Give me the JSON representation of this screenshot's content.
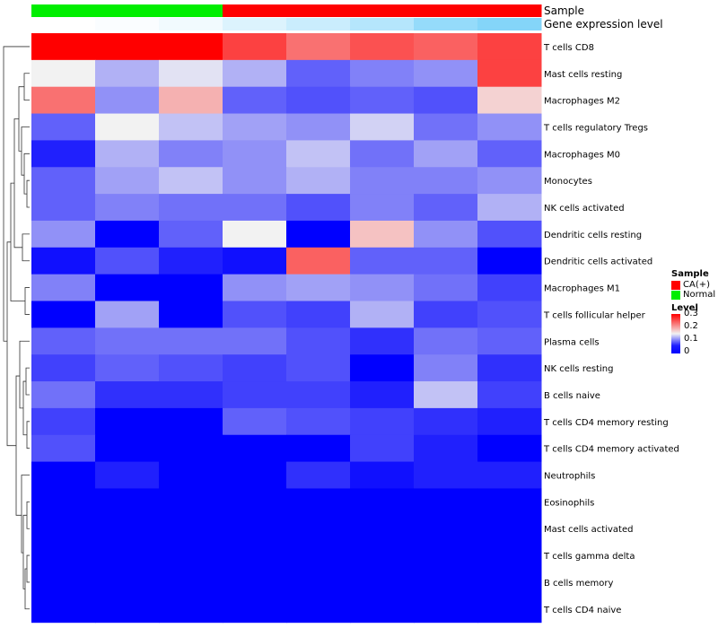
{
  "chart_data": {
    "type": "heatmap",
    "annotation_labels": {
      "sample": "Sample",
      "gene_expression": "Gene expression level"
    },
    "columns": [
      {
        "sample": "Normal",
        "gene_expression": 0.0
      },
      {
        "sample": "Normal",
        "gene_expression": 0.03
      },
      {
        "sample": "Normal",
        "gene_expression": 0.08
      },
      {
        "sample": "CA(+)",
        "gene_expression": 0.2
      },
      {
        "sample": "CA(+)",
        "gene_expression": 0.3
      },
      {
        "sample": "CA(+)",
        "gene_expression": 0.42
      },
      {
        "sample": "CA(+)",
        "gene_expression": 0.6
      },
      {
        "sample": "CA(+)",
        "gene_expression": 0.7
      }
    ],
    "rows": [
      "T cells CD8",
      "Mast cells resting",
      "Macrophages M2",
      "T cells regulatory  Tregs",
      "Macrophages M0",
      "Monocytes",
      "NK cells activated",
      "Dendritic cells resting",
      "Dendritic cells activated",
      "Macrophages M1",
      "T cells follicular helper",
      "Plasma cells",
      "NK cells resting",
      "B cells naive",
      "T cells CD4 memory resting",
      "T cells CD4 memory activated",
      "Neutrophils",
      "Eosinophils",
      "Mast cells activated",
      "T cells gamma delta",
      "B cells memory",
      "T cells CD4 naive"
    ],
    "values": [
      [
        0.3,
        0.3,
        0.3,
        0.26,
        0.23,
        0.25,
        0.24,
        0.26
      ],
      [
        0.15,
        0.11,
        0.14,
        0.11,
        0.06,
        0.08,
        0.09,
        0.26
      ],
      [
        0.23,
        0.09,
        0.19,
        0.06,
        0.05,
        0.06,
        0.05,
        0.17
      ],
      [
        0.06,
        0.15,
        0.12,
        0.1,
        0.09,
        0.13,
        0.07,
        0.09
      ],
      [
        0.02,
        0.11,
        0.08,
        0.09,
        0.12,
        0.07,
        0.1,
        0.06
      ],
      [
        0.06,
        0.1,
        0.12,
        0.09,
        0.11,
        0.08,
        0.08,
        0.09
      ],
      [
        0.06,
        0.08,
        0.07,
        0.07,
        0.05,
        0.08,
        0.06,
        0.11
      ],
      [
        0.09,
        0.0,
        0.06,
        0.15,
        0.0,
        0.18,
        0.09,
        0.05
      ],
      [
        0.01,
        0.05,
        0.02,
        0.01,
        0.24,
        0.06,
        0.06,
        0.0
      ],
      [
        0.08,
        0.0,
        0.0,
        0.09,
        0.1,
        0.09,
        0.07,
        0.04
      ],
      [
        0.0,
        0.1,
        0.0,
        0.05,
        0.04,
        0.11,
        0.04,
        0.05
      ],
      [
        0.06,
        0.07,
        0.07,
        0.07,
        0.05,
        0.03,
        0.07,
        0.06
      ],
      [
        0.04,
        0.06,
        0.05,
        0.04,
        0.05,
        0.0,
        0.08,
        0.03
      ],
      [
        0.07,
        0.03,
        0.03,
        0.04,
        0.04,
        0.02,
        0.12,
        0.04
      ],
      [
        0.04,
        0.0,
        0.0,
        0.06,
        0.05,
        0.04,
        0.03,
        0.02
      ],
      [
        0.05,
        0.0,
        0.0,
        0.0,
        0.0,
        0.04,
        0.02,
        0.0
      ],
      [
        0.0,
        0.02,
        0.0,
        0.0,
        0.03,
        0.01,
        0.02,
        0.02
      ],
      [
        0.0,
        0.0,
        0.0,
        0.0,
        0.0,
        0.0,
        0.0,
        0.0
      ],
      [
        0.0,
        0.0,
        0.0,
        0.0,
        0.0,
        0.0,
        0.0,
        0.0
      ],
      [
        0.0,
        0.0,
        0.0,
        0.0,
        0.0,
        0.0,
        0.0,
        0.0
      ],
      [
        0.0,
        0.0,
        0.0,
        0.0,
        0.0,
        0.0,
        0.0,
        0.0
      ],
      [
        0.0,
        0.0,
        0.0,
        0.0,
        0.0,
        0.0,
        0.0,
        0.0
      ]
    ],
    "value_range": [
      0,
      0.3
    ],
    "color_scale": {
      "low": "#0000ff",
      "mid": "#f2f2f2",
      "high": "#ff0000"
    },
    "sample_colors": {
      "CA(+)": "#ff0000",
      "Normal": "#00ee00"
    },
    "gene_expression_colors": {
      "low": "#ffffff",
      "high": "#4fc3f7"
    },
    "row_dendrogram": true,
    "legends": {
      "sample": {
        "title": "Sample",
        "entries": [
          "CA(+)",
          "Normal"
        ]
      },
      "level": {
        "title": "Level",
        "ticks": [
          "0.3",
          "0.2",
          "0.1",
          "0"
        ]
      }
    },
    "legend_position": "right"
  }
}
